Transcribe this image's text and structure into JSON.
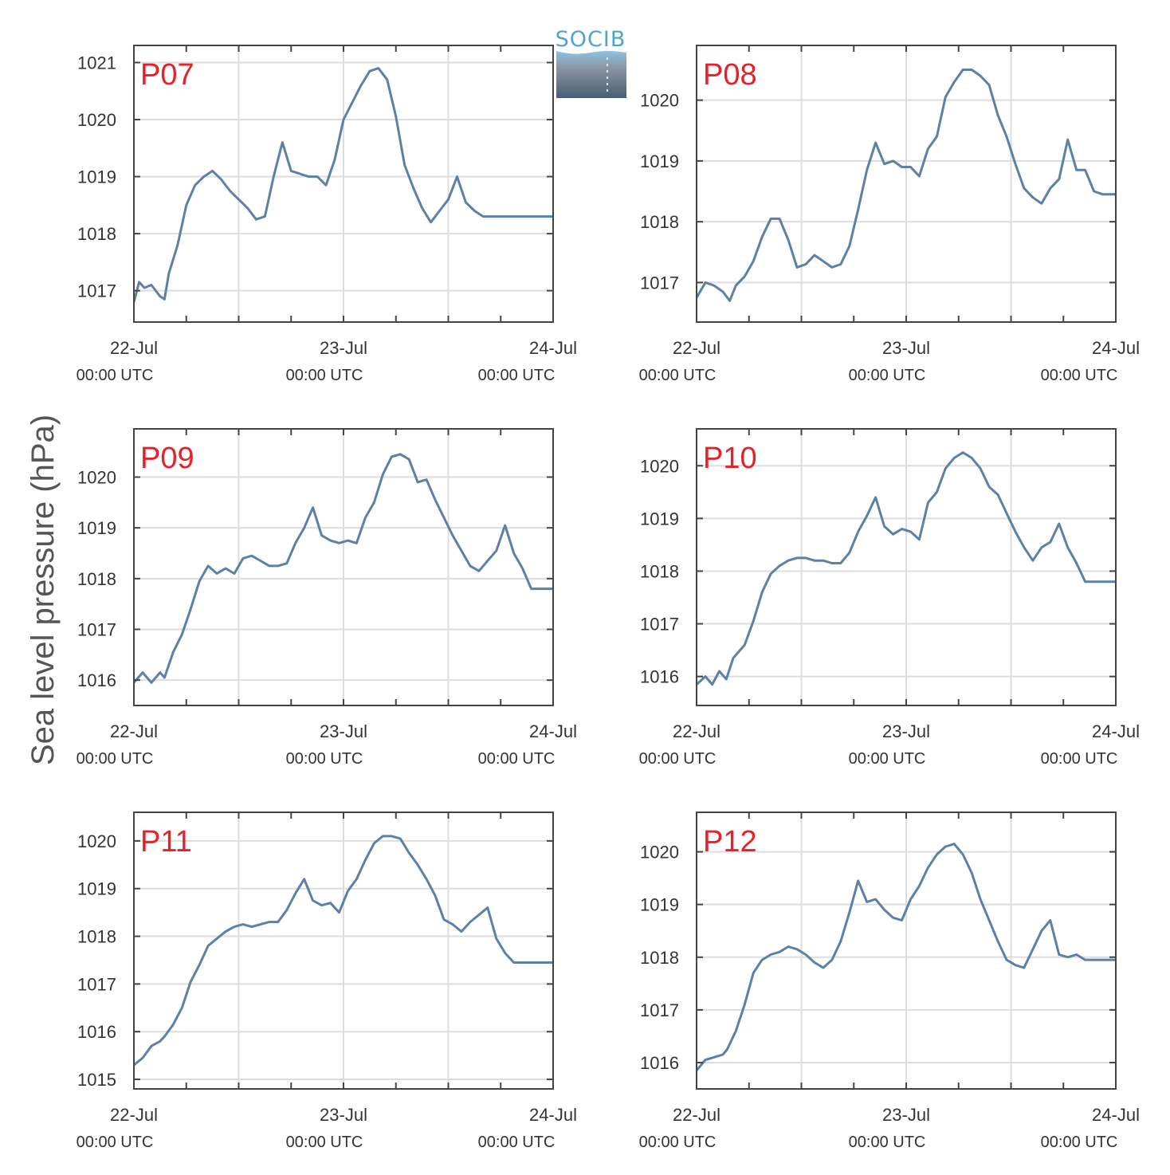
{
  "figure": {
    "ylabel": "Sea level pressure (hPa)",
    "logo_text": "SOCIB",
    "colors": {
      "line": "#5c81a5",
      "panel_label": "#e8202a",
      "grid": "#dddddd",
      "axes": "#444444"
    }
  },
  "chart_data": [
    {
      "type": "line",
      "name": "P07",
      "x_tick_labels": [
        [
          "22-Jul",
          "00:00 UTC"
        ],
        [
          "23-Jul",
          "00:00 UTC"
        ],
        [
          "24-Jul",
          "00:00 UTC"
        ]
      ],
      "xlim": [
        0,
        48
      ],
      "ylim": [
        1016.45,
        1021.3
      ],
      "yticks": [
        1017,
        1018,
        1019,
        1020,
        1021
      ],
      "x": [
        0,
        0.6,
        1.2,
        2,
        3,
        3.5,
        4,
        5,
        6,
        7,
        8,
        9,
        10,
        11,
        12,
        13,
        14,
        15,
        16,
        17,
        18,
        19,
        20,
        21,
        22,
        23,
        24,
        25,
        26,
        27,
        28,
        29,
        30,
        31,
        32,
        33,
        34,
        35,
        36,
        37,
        38,
        39,
        40,
        41,
        42,
        43,
        44,
        45,
        46,
        47,
        48
      ],
      "y": [
        1016.8,
        1017.15,
        1017.05,
        1017.1,
        1016.9,
        1016.85,
        1017.3,
        1017.8,
        1018.5,
        1018.85,
        1019.0,
        1019.1,
        1018.95,
        1018.75,
        1018.6,
        1018.45,
        1018.25,
        1018.3,
        1019.0,
        1019.6,
        1019.1,
        1019.05,
        1019.0,
        1019.0,
        1018.85,
        1019.3,
        1020.0,
        1020.3,
        1020.6,
        1020.85,
        1020.9,
        1020.7,
        1020.05,
        1019.2,
        1018.8,
        1018.45,
        1018.2,
        1018.4,
        1018.6,
        1019.0,
        1018.55,
        1018.4,
        1018.3,
        1018.3,
        1018.3,
        1018.3,
        1018.3,
        1018.3,
        1018.3,
        1018.3,
        1018.3
      ]
    },
    {
      "type": "line",
      "name": "P08",
      "x_tick_labels": [
        [
          "22-Jul",
          "00:00 UTC"
        ],
        [
          "23-Jul",
          "00:00 UTC"
        ],
        [
          "24-Jul",
          "00:00 UTC"
        ]
      ],
      "xlim": [
        0,
        48
      ],
      "ylim": [
        1016.35,
        1020.9
      ],
      "yticks": [
        1017,
        1018,
        1019,
        1020
      ],
      "x": [
        0,
        1,
        2,
        3,
        3.8,
        4.5,
        5.5,
        6.5,
        7.5,
        8.5,
        9.5,
        10.5,
        11.5,
        12.5,
        13.5,
        14.5,
        15.5,
        16.5,
        17.5,
        18.5,
        19.5,
        20.5,
        21.5,
        22.5,
        23.5,
        24.5,
        25.5,
        26.5,
        27.5,
        28.5,
        29.5,
        30.5,
        31.5,
        32.5,
        33.5,
        34.5,
        35.5,
        36.5,
        37.5,
        38.5,
        39.5,
        40.5,
        41.5,
        42.5,
        43.5,
        44.5,
        45.5,
        46.5,
        47.5,
        48
      ],
      "y": [
        1016.75,
        1017.0,
        1016.95,
        1016.85,
        1016.7,
        1016.95,
        1017.1,
        1017.35,
        1017.75,
        1018.05,
        1018.05,
        1017.7,
        1017.25,
        1017.3,
        1017.45,
        1017.35,
        1017.25,
        1017.3,
        1017.6,
        1018.2,
        1018.85,
        1019.3,
        1018.95,
        1019.0,
        1018.9,
        1018.9,
        1018.75,
        1019.2,
        1019.4,
        1020.05,
        1020.3,
        1020.5,
        1020.5,
        1020.4,
        1020.25,
        1019.75,
        1019.4,
        1018.95,
        1018.55,
        1018.4,
        1018.3,
        1018.55,
        1018.7,
        1019.35,
        1018.85,
        1018.85,
        1018.5,
        1018.45,
        1018.45,
        1018.45
      ]
    },
    {
      "type": "line",
      "name": "P09",
      "x_tick_labels": [
        [
          "22-Jul",
          "00:00 UTC"
        ],
        [
          "23-Jul",
          "00:00 UTC"
        ],
        [
          "24-Jul",
          "00:00 UTC"
        ]
      ],
      "xlim": [
        0,
        48
      ],
      "ylim": [
        1015.5,
        1020.95
      ],
      "yticks": [
        1016,
        1017,
        1018,
        1019,
        1020
      ],
      "x": [
        0,
        1,
        2,
        3,
        3.5,
        4.5,
        5.5,
        6.5,
        7.5,
        8.5,
        9.5,
        10.5,
        11.5,
        12.5,
        13.5,
        14.5,
        15.5,
        16.5,
        17.5,
        18.5,
        19.5,
        20.5,
        21.5,
        22.5,
        23.5,
        24.5,
        25.5,
        26.5,
        27.5,
        28.5,
        29.5,
        30.5,
        31.5,
        32.5,
        33.5,
        34.5,
        35.5,
        36.5,
        37.5,
        38.5,
        39.5,
        40.5,
        41.5,
        42.5,
        43.5,
        44.5,
        45.5,
        46.5,
        47.5,
        48
      ],
      "y": [
        1015.95,
        1016.15,
        1015.95,
        1016.15,
        1016.05,
        1016.55,
        1016.9,
        1017.4,
        1017.95,
        1018.25,
        1018.1,
        1018.2,
        1018.1,
        1018.4,
        1018.45,
        1018.35,
        1018.25,
        1018.25,
        1018.3,
        1018.7,
        1019.0,
        1019.4,
        1018.85,
        1018.75,
        1018.7,
        1018.75,
        1018.7,
        1019.2,
        1019.5,
        1020.05,
        1020.4,
        1020.45,
        1020.35,
        1019.9,
        1019.95,
        1019.55,
        1019.2,
        1018.85,
        1018.55,
        1018.25,
        1018.15,
        1018.35,
        1018.55,
        1019.05,
        1018.5,
        1018.2,
        1017.8,
        1017.8,
        1017.8,
        1017.8
      ]
    },
    {
      "type": "line",
      "name": "P10",
      "x_tick_labels": [
        [
          "22-Jul",
          "00:00 UTC"
        ],
        [
          "23-Jul",
          "00:00 UTC"
        ],
        [
          "24-Jul",
          "00:00 UTC"
        ]
      ],
      "xlim": [
        0,
        48
      ],
      "ylim": [
        1015.45,
        1020.7
      ],
      "yticks": [
        1016,
        1017,
        1018,
        1019,
        1020
      ],
      "x": [
        0,
        1,
        1.8,
        2.6,
        3.4,
        4.2,
        5.5,
        6.5,
        7.5,
        8.5,
        9.5,
        10.5,
        11.5,
        12.5,
        13.5,
        14.5,
        15.5,
        16.5,
        17.5,
        18.5,
        19.5,
        20.5,
        21.5,
        22.5,
        23.5,
        24.5,
        25.5,
        26.5,
        27.5,
        28.5,
        29.5,
        30.5,
        31.5,
        32.5,
        33.5,
        34.5,
        35.5,
        36.5,
        37.5,
        38.5,
        39.5,
        40.5,
        41.5,
        42.5,
        43.5,
        44.5,
        45.5,
        46.5,
        47.5,
        48
      ],
      "y": [
        1015.85,
        1016.0,
        1015.85,
        1016.1,
        1015.95,
        1016.35,
        1016.6,
        1017.05,
        1017.6,
        1017.95,
        1018.1,
        1018.2,
        1018.25,
        1018.25,
        1018.2,
        1018.2,
        1018.15,
        1018.15,
        1018.35,
        1018.75,
        1019.05,
        1019.4,
        1018.85,
        1018.7,
        1018.8,
        1018.75,
        1018.6,
        1019.3,
        1019.5,
        1019.95,
        1020.15,
        1020.25,
        1020.15,
        1019.95,
        1019.6,
        1019.45,
        1019.1,
        1018.75,
        1018.45,
        1018.2,
        1018.45,
        1018.55,
        1018.9,
        1018.45,
        1018.15,
        1017.8,
        1017.8,
        1017.8,
        1017.8,
        1017.8
      ]
    },
    {
      "type": "line",
      "name": "P11",
      "x_tick_labels": [
        [
          "22-Jul",
          "00:00 UTC"
        ],
        [
          "23-Jul",
          "00:00 UTC"
        ],
        [
          "24-Jul",
          "00:00 UTC"
        ]
      ],
      "xlim": [
        0,
        48
      ],
      "ylim": [
        1014.8,
        1020.6
      ],
      "yticks": [
        1015,
        1016,
        1017,
        1018,
        1019,
        1020
      ],
      "x": [
        0,
        1,
        2,
        3,
        3.5,
        4.5,
        5.5,
        6.5,
        7.5,
        8.5,
        9.5,
        10.5,
        11.5,
        12.5,
        13.5,
        14.5,
        15.5,
        16.5,
        17.5,
        18.5,
        19.5,
        20.5,
        21.5,
        22.5,
        23.5,
        24.5,
        25.5,
        26.5,
        27.5,
        28.5,
        29.5,
        30.5,
        31.5,
        32.5,
        33.5,
        34.5,
        35.5,
        36.5,
        37.5,
        38.5,
        39.5,
        40.5,
        41.5,
        42.5,
        43.5,
        44.5,
        45.5,
        46.5,
        47.5,
        48
      ],
      "y": [
        1015.3,
        1015.45,
        1015.7,
        1015.8,
        1015.9,
        1016.15,
        1016.5,
        1017.05,
        1017.4,
        1017.8,
        1017.95,
        1018.1,
        1018.2,
        1018.25,
        1018.2,
        1018.25,
        1018.3,
        1018.3,
        1018.55,
        1018.9,
        1019.2,
        1018.75,
        1018.65,
        1018.7,
        1018.5,
        1018.95,
        1019.2,
        1019.6,
        1019.95,
        1020.1,
        1020.1,
        1020.05,
        1019.75,
        1019.5,
        1019.2,
        1018.85,
        1018.35,
        1018.25,
        1018.1,
        1018.3,
        1018.45,
        1018.6,
        1017.95,
        1017.65,
        1017.45,
        1017.45,
        1017.45,
        1017.45,
        1017.45,
        1017.45
      ]
    },
    {
      "type": "line",
      "name": "P12",
      "x_tick_labels": [
        [
          "22-Jul",
          "00:00 UTC"
        ],
        [
          "23-Jul",
          "00:00 UTC"
        ],
        [
          "24-Jul",
          "00:00 UTC"
        ]
      ],
      "xlim": [
        0,
        48
      ],
      "ylim": [
        1015.5,
        1020.75
      ],
      "yticks": [
        1016,
        1017,
        1018,
        1019,
        1020
      ],
      "x": [
        0,
        1,
        2,
        3,
        3.5,
        4.5,
        5.5,
        6.5,
        7.5,
        8.5,
        9.5,
        10.5,
        11.5,
        12.5,
        13.5,
        14.5,
        15.5,
        16.5,
        17.5,
        18.5,
        19.5,
        20.5,
        21.5,
        22.5,
        23.5,
        24.5,
        25.5,
        26.5,
        27.5,
        28.5,
        29.5,
        30.5,
        31.5,
        32.5,
        33.5,
        34.5,
        35.5,
        36.5,
        37.5,
        38.5,
        39.5,
        40.5,
        41.5,
        42.5,
        43.5,
        44.5,
        45.5,
        46.5,
        47.5,
        48
      ],
      "y": [
        1015.85,
        1016.05,
        1016.1,
        1016.15,
        1016.25,
        1016.6,
        1017.1,
        1017.7,
        1017.95,
        1018.05,
        1018.1,
        1018.2,
        1018.15,
        1018.05,
        1017.9,
        1017.8,
        1017.95,
        1018.3,
        1018.85,
        1019.45,
        1019.05,
        1019.1,
        1018.9,
        1018.75,
        1018.7,
        1019.1,
        1019.35,
        1019.7,
        1019.95,
        1020.1,
        1020.15,
        1019.95,
        1019.6,
        1019.1,
        1018.7,
        1018.3,
        1017.95,
        1017.85,
        1017.8,
        1018.15,
        1018.5,
        1018.7,
        1018.05,
        1018.0,
        1018.05,
        1017.95,
        1017.95,
        1017.95,
        1017.95,
        1017.95
      ]
    }
  ]
}
